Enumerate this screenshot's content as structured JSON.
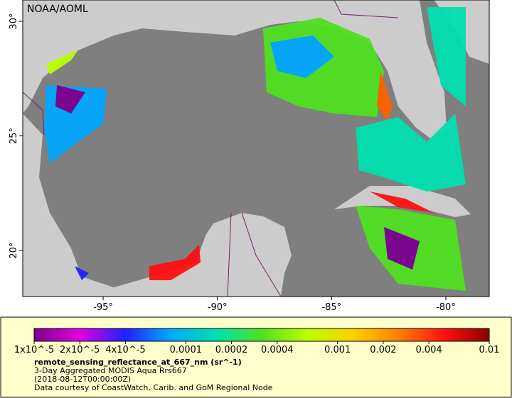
{
  "map": {
    "credit": "NOAA/AOML",
    "xlim": [
      -98.52,
      -78.1
    ],
    "ylim": [
      17.99,
      30.93
    ],
    "xticks": [
      {
        "value": -95,
        "label": "-95°"
      },
      {
        "value": -90,
        "label": "-90°"
      },
      {
        "value": -85,
        "label": "-85°"
      },
      {
        "value": -80,
        "label": "-80°"
      }
    ],
    "yticks": [
      {
        "value": 30,
        "label": "30°"
      },
      {
        "value": 25,
        "label": "25°"
      },
      {
        "value": 20,
        "label": "20°"
      }
    ],
    "ocean_color": "#7f7f7f",
    "land_color": "#cccccc"
  },
  "colorbar": {
    "log_scale": true,
    "lim": [
      1e-05,
      0.01
    ],
    "colors": [
      "#7a0090",
      "#e000e0",
      "#2020ff",
      "#00a8ff",
      "#00e0b0",
      "#50e020",
      "#b8ff00",
      "#ffd000",
      "#ff8000",
      "#ff1010",
      "#8b0000"
    ],
    "ticks": [
      {
        "value": 1e-05,
        "label": "1x10^-5"
      },
      {
        "value": 2e-05,
        "label": "2x10^-5"
      },
      {
        "value": 4e-05,
        "label": "4x10^-5"
      },
      {
        "value": 0.0001,
        "label": "0.0001"
      },
      {
        "value": 0.0002,
        "label": "0.0002"
      },
      {
        "value": 0.0004,
        "label": "0.0004"
      },
      {
        "value": 0.001,
        "label": "0.001"
      },
      {
        "value": 0.002,
        "label": "0.002"
      },
      {
        "value": 0.004,
        "label": "0.004"
      },
      {
        "value": 0.01,
        "label": "0.01"
      }
    ],
    "variable": "remote_sensing_reflectance_at_667_nm (sr^-1)",
    "lines": [
      "3-Day Aggregated MODIS Aqua Rrs667",
      "(2018-08-12T00:00:00Z)",
      "Data courtesy of CoastWatch, Carib. and GoM Regional Node"
    ]
  }
}
